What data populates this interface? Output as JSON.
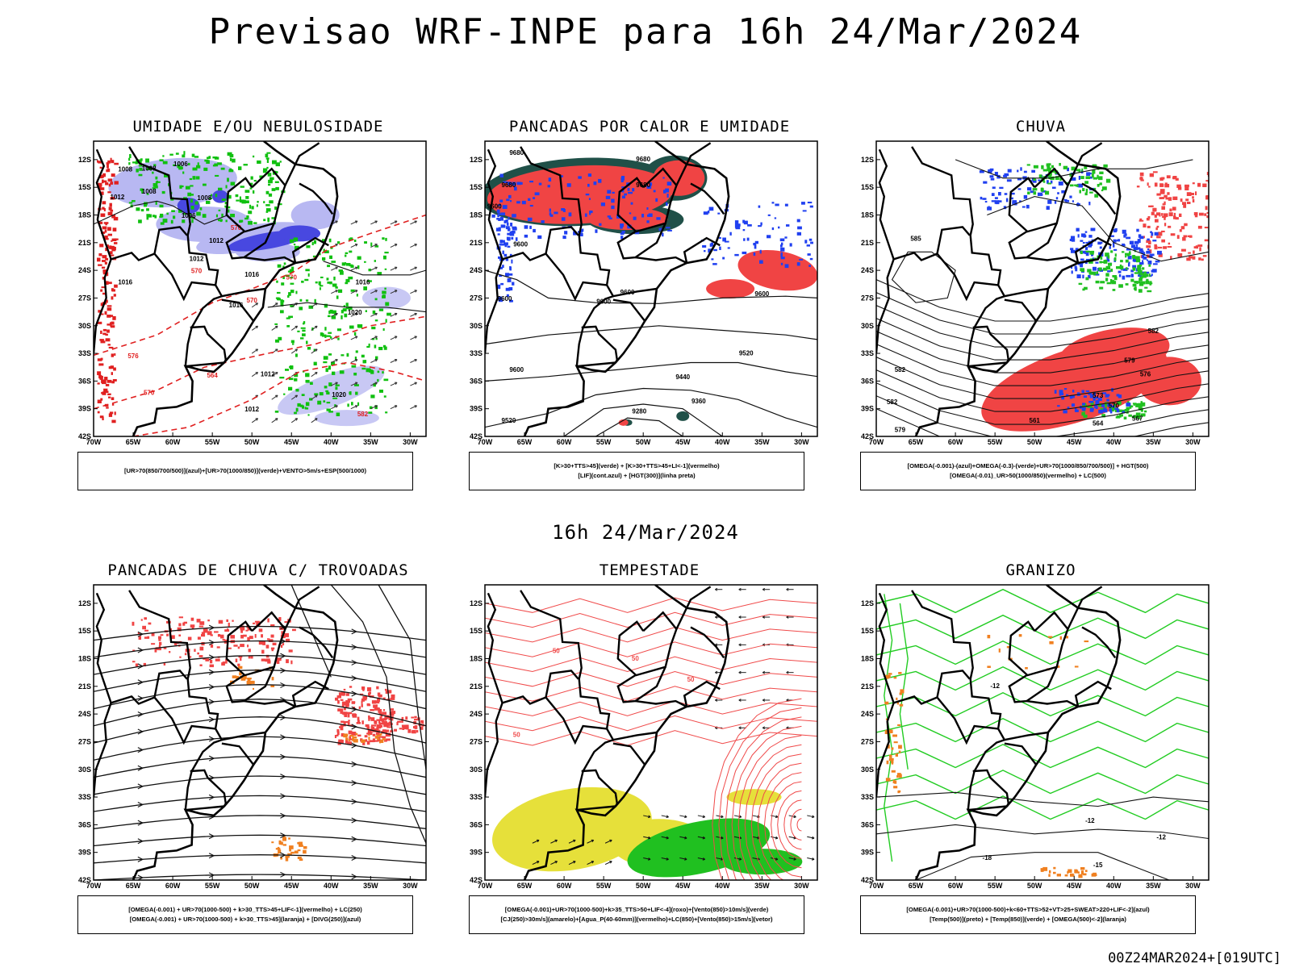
{
  "title": "Previsao WRF-INPE  para 16h 24/Mar/2024",
  "subtitle": "16h 24/Mar/2024",
  "run_stamp": "00Z24MAR2024+[019UTC]",
  "axes": {
    "lat_ticks": [
      "12S",
      "15S",
      "18S",
      "21S",
      "24S",
      "27S",
      "30S",
      "33S",
      "36S",
      "39S",
      "42S"
    ],
    "lon_ticks": [
      "70W",
      "65W",
      "60W",
      "55W",
      "50W",
      "45W",
      "40W",
      "35W",
      "30W"
    ]
  },
  "panels": [
    {
      "title": "UMIDADE E/OU NEBULOSIDADE",
      "legend": [
        "[UR>70(850/700/500)](azul)+[UR>70(1000/850)](verde)+VENTO>5m/s+ESP(500/1000)"
      ],
      "contour_labels": [
        "1008",
        "1008",
        "1006",
        "1008",
        "1012",
        "1006",
        "1008",
        "1012",
        "1016",
        "1012",
        "1016",
        "1016",
        "1016",
        "1020",
        "1012",
        "1018",
        "1012",
        "1020",
        "570",
        "570",
        "564",
        "576",
        "570",
        "582"
      ],
      "fills": {
        "blue_dark": "#4040e0",
        "blue_light": "#b0b0f0",
        "green": "#00c000",
        "dashed_red": "#e02020"
      }
    },
    {
      "title": "PANCADAS POR CALOR E UMIDADE",
      "legend": [
        "[K>30+TTS>45](verde) + [K>30+TTS>45+LI<-1](vermelho)",
        "[LIF](cont.azul) + [HGT(300)](linha preta)"
      ],
      "contour_labels": [
        "9680",
        "9680",
        "9680",
        "9600",
        "9600",
        "9600",
        "9520",
        "9440",
        "9360",
        "9280",
        "9520",
        "9600"
      ],
      "fills": {
        "red": "#f04040",
        "dark_green": "#205050",
        "blue": "#2040f0"
      }
    },
    {
      "title": "CHUVA",
      "legend": [
        "[OMEGA(-0.001)-(azul)+OMEGA(-0.3)-(verde)+UR>70(1000/850/700/500)] + HGT(500)",
        "[OMEGA(-0.01)_UR>50(1000/850)(vermelho) + LC(500)"
      ],
      "contour_labels": [
        "585",
        "582",
        "588",
        "579",
        "576",
        "573",
        "570",
        "567",
        "564",
        "561",
        "582",
        "579"
      ],
      "fills": {
        "red": "#f04040",
        "blue": "#2040f0",
        "green": "#20c020"
      }
    },
    {
      "title": "PANCADAS DE CHUVA C/ TROVOADAS",
      "legend": [
        "[OMEGA(-0.001) + UR>70(1000-500) + k>30_TTS>45+LIF<-1](vermelho) + LC(250)",
        "[OMEGA(-0.001) + UR>70(1000-500) + k>30_TTS>45](laranja) + [DIVG(250)](azul)"
      ],
      "contour_labels": [],
      "fills": {
        "red": "#f04040",
        "orange": "#f08020",
        "blue": "#2040f0"
      }
    },
    {
      "title": "TEMPESTADE",
      "legend": [
        "[OMEGA(-0.001)+UR>70(1000-500)+k>35_TTS>50+LIF<-4](roxo)+[Vento(850)>10m/s](verde)",
        "[CJ(250)>30m/s](amarelo)+[Agua_P(40-60mm)](vermelho)+LC(850)+[Vento(850)>15m/s](vetor)"
      ],
      "contour_labels": [
        "50",
        "50",
        "50",
        "50"
      ],
      "fills": {
        "yellow": "#e8e030",
        "green": "#20c020",
        "red": "#f05050"
      }
    },
    {
      "title": "GRANIZO",
      "legend": [
        "[OMEGA(-0.001)+UR>70(1000-500)+k<60+TTS>52+VT>25+SWEAT>220+LIF<-2](azul)",
        "[Temp(500)](preto) + [Temp(850)](verde) + [OMEGA(500)<-2](laranja)"
      ],
      "contour_labels": [
        "-12",
        "-12",
        "-15",
        "-12",
        "-18"
      ],
      "fills": {
        "green": "#20d020",
        "orange": "#f08020"
      }
    }
  ]
}
